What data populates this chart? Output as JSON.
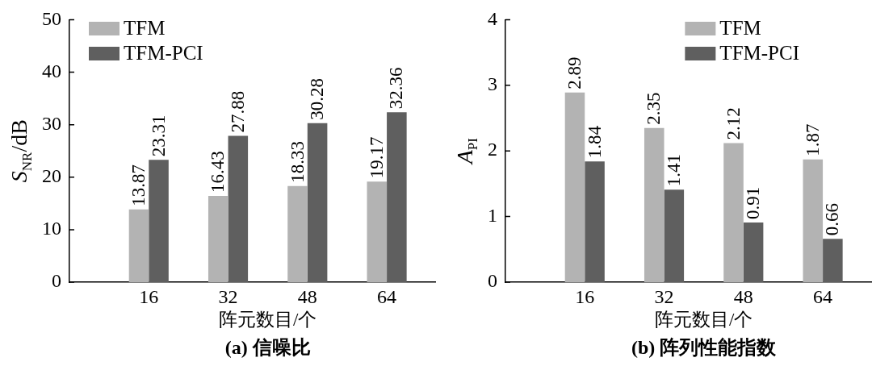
{
  "chart_data": [
    {
      "type": "bar",
      "title": "(a) 信噪比",
      "xlabel": "阵元数目/个",
      "ylabel": "S$_{NR}$/dB",
      "categories": [
        "16",
        "32",
        "48",
        "64"
      ],
      "series": [
        {
          "name": "TFM",
          "color": "#b3b3b3",
          "values": [
            13.87,
            16.43,
            18.33,
            19.17
          ]
        },
        {
          "name": "TFM-PCI",
          "color": "#5f5f5f",
          "values": [
            23.31,
            27.88,
            30.28,
            32.36
          ]
        }
      ],
      "ylim": [
        0,
        50
      ],
      "yticks": [
        0,
        10,
        20,
        30,
        40,
        50
      ],
      "legend": "top left",
      "data_labels": true
    },
    {
      "type": "bar",
      "title": "(b) 阵列性能指数",
      "xlabel": "阵元数目/个",
      "ylabel": "A$_{PI}$",
      "categories": [
        "16",
        "32",
        "48",
        "64"
      ],
      "series": [
        {
          "name": "TFM",
          "color": "#b3b3b3",
          "values": [
            2.89,
            2.35,
            2.12,
            1.87
          ]
        },
        {
          "name": "TFM-PCI",
          "color": "#5f5f5f",
          "values": [
            1.84,
            1.41,
            0.91,
            0.66
          ]
        }
      ],
      "ylim": [
        0,
        4
      ],
      "yticks": [
        0,
        1,
        2,
        3,
        4
      ],
      "legend": "top right",
      "data_labels": true
    }
  ]
}
